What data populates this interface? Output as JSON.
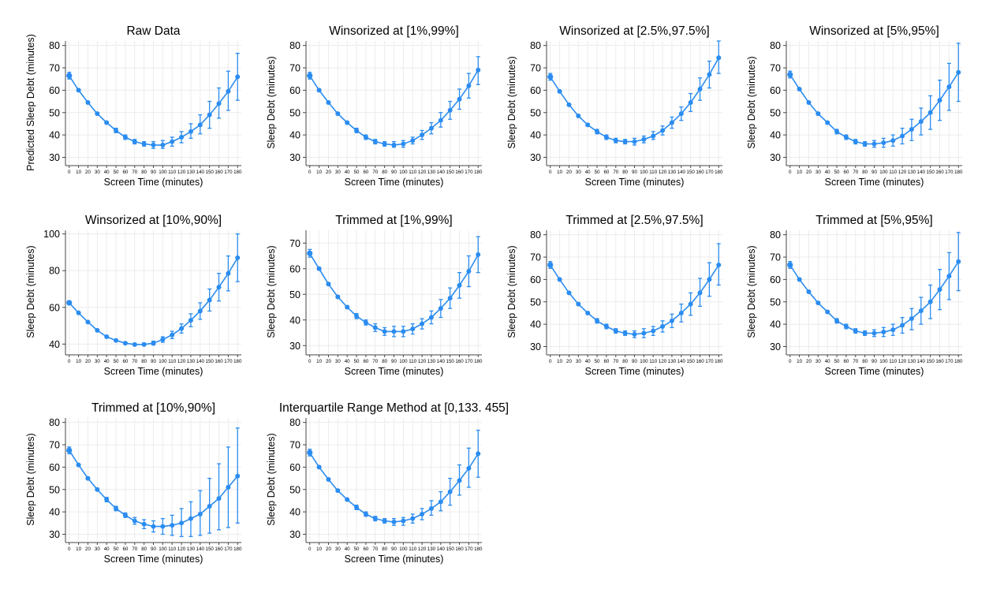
{
  "figure": {
    "series_color": "#2b8cf0",
    "grid_color": "#ececec",
    "axis_color": "#444444"
  },
  "chart_data": [
    {
      "type": "line",
      "title": "Raw Data",
      "xlabel": "Screen Time (minutes)",
      "ylabel": "Predicted Sleep Debt (minutes)",
      "x": [
        0,
        10,
        20,
        30,
        40,
        50,
        60,
        70,
        80,
        90,
        100,
        110,
        120,
        130,
        140,
        150,
        160,
        170,
        180
      ],
      "y": [
        66.5,
        60,
        54.5,
        49.5,
        45.5,
        42,
        39,
        37,
        36,
        35.5,
        35.5,
        37,
        39,
        41.5,
        44.5,
        49,
        54,
        59.5,
        66
      ],
      "ci_low": [
        65,
        59.5,
        54,
        49,
        45,
        41,
        38,
        36,
        35,
        34,
        34,
        35,
        36.5,
        38.5,
        40.5,
        43,
        47.5,
        51,
        55.5
      ],
      "ci_high": [
        68,
        60.5,
        55,
        50,
        46,
        43,
        40,
        38,
        37,
        37,
        37.5,
        39,
        41.5,
        45,
        49,
        55,
        61,
        68.5,
        76.5
      ],
      "ylim": [
        27,
        82
      ],
      "yticks": [
        30,
        40,
        50,
        60,
        70,
        80
      ]
    },
    {
      "type": "line",
      "title": "Winsorized at [1%,99%]",
      "xlabel": "Screen Time (minutes)",
      "ylabel": "Sleep Debt (minutes)",
      "x": [
        0,
        10,
        20,
        30,
        40,
        50,
        60,
        70,
        80,
        90,
        100,
        110,
        120,
        130,
        140,
        150,
        160,
        170,
        180
      ],
      "y": [
        66.5,
        60,
        54.5,
        49.5,
        45.5,
        42,
        39,
        37,
        36,
        35.5,
        36,
        37.5,
        40,
        43,
        46.5,
        51,
        56,
        62,
        69
      ],
      "ci_low": [
        65,
        59.5,
        54,
        49,
        45,
        41,
        38,
        36,
        35,
        34.5,
        34.5,
        36,
        38,
        40.5,
        43.5,
        47,
        51.5,
        56.5,
        62.5
      ],
      "ci_high": [
        68,
        60.5,
        55,
        50,
        46,
        43,
        40,
        38,
        37,
        37,
        37.5,
        39,
        42,
        45.5,
        50,
        55,
        60.5,
        67.5,
        75
      ],
      "ylim": [
        27,
        82
      ],
      "yticks": [
        30,
        40,
        50,
        60,
        70,
        80
      ]
    },
    {
      "type": "line",
      "title": "Winsorized at [2.5%,97.5%]",
      "xlabel": "Screen Time (minutes)",
      "ylabel": "Sleep Debt (minutes)",
      "x": [
        0,
        10,
        20,
        30,
        40,
        50,
        60,
        70,
        80,
        90,
        100,
        110,
        120,
        130,
        140,
        150,
        160,
        170,
        180
      ],
      "y": [
        66,
        59.5,
        53.5,
        48.5,
        44.5,
        41.5,
        39,
        37.5,
        37,
        37,
        38,
        39.5,
        42,
        45.5,
        49.5,
        54.5,
        60.5,
        67,
        74.5
      ],
      "ci_low": [
        64.5,
        59,
        53,
        48,
        44,
        40.5,
        38,
        36.5,
        36,
        35.5,
        36.5,
        38,
        40,
        43,
        46.5,
        50.5,
        55.5,
        61,
        67.5
      ],
      "ci_high": [
        67.5,
        60,
        54,
        49,
        45,
        42.5,
        40,
        38.5,
        38,
        38.5,
        39.5,
        41.5,
        44,
        48,
        52.5,
        58.5,
        65.5,
        73,
        82
      ],
      "ylim": [
        27,
        82
      ],
      "yticks": [
        30,
        40,
        50,
        60,
        70,
        80
      ]
    },
    {
      "type": "line",
      "title": "Winsorized at [5%,95%]",
      "xlabel": "Screen Time (minutes)",
      "ylabel": "Sleep Debt (minutes)",
      "x": [
        0,
        10,
        20,
        30,
        40,
        50,
        60,
        70,
        80,
        90,
        100,
        110,
        120,
        130,
        140,
        150,
        160,
        170,
        180
      ],
      "y": [
        67,
        60.5,
        54.5,
        49.5,
        45.5,
        41.5,
        39,
        37,
        36,
        36,
        36.5,
        37.5,
        39.5,
        42.5,
        46,
        50,
        55.5,
        61.5,
        68
      ],
      "ci_low": [
        65.5,
        60,
        54,
        49,
        45,
        40.5,
        38,
        36,
        35,
        34.5,
        34.5,
        35,
        36,
        37.5,
        40,
        42.5,
        46.5,
        51,
        55
      ],
      "ci_high": [
        68.5,
        61,
        55,
        50,
        46,
        42.5,
        40,
        38,
        37,
        37.5,
        38.5,
        40,
        43,
        47,
        52,
        57.5,
        64.5,
        72,
        81
      ],
      "ylim": [
        27,
        82
      ],
      "yticks": [
        30,
        40,
        50,
        60,
        70,
        80
      ]
    },
    {
      "type": "line",
      "title": "Winsorized at [10%,90%]",
      "xlabel": "Screen Time (minutes)",
      "ylabel": "Sleep Debt (minutes)",
      "x": [
        0,
        10,
        20,
        30,
        40,
        50,
        60,
        70,
        80,
        90,
        100,
        110,
        120,
        130,
        140,
        150,
        160,
        170,
        180
      ],
      "y": [
        62.5,
        57,
        52,
        47.5,
        44,
        42,
        40.5,
        39.8,
        39.8,
        40.5,
        42.5,
        45,
        48.5,
        53,
        58,
        64,
        71,
        78.5,
        87
      ],
      "ci_low": [
        61.5,
        56.5,
        51.5,
        47,
        43.5,
        41.5,
        40,
        39.2,
        39.2,
        39.5,
        41,
        43,
        46,
        49.5,
        53.5,
        58,
        63.5,
        69,
        74
      ],
      "ci_high": [
        63.5,
        57.5,
        52.5,
        48,
        44.5,
        42.5,
        41,
        40.4,
        40.6,
        41.6,
        44,
        47,
        51,
        56.5,
        62.5,
        70,
        78.5,
        88,
        100
      ],
      "ylim": [
        35,
        102
      ],
      "yticks": [
        40,
        60,
        80,
        100
      ]
    },
    {
      "type": "line",
      "title": "Trimmed at [1%,99%]",
      "xlabel": "Screen Time (minutes)",
      "ylabel": "Sleep Debt (minutes)",
      "x": [
        0,
        10,
        20,
        30,
        40,
        50,
        60,
        70,
        80,
        90,
        100,
        110,
        120,
        130,
        140,
        150,
        160,
        170,
        180
      ],
      "y": [
        66,
        60,
        54,
        49,
        45,
        41.5,
        39,
        37,
        35.5,
        35.5,
        35.5,
        36.5,
        38.5,
        41,
        44.5,
        48.5,
        53.5,
        59,
        65.5
      ],
      "ci_low": [
        64.5,
        59.5,
        53.5,
        48.5,
        44.5,
        40.5,
        38,
        35.5,
        34,
        33.5,
        33.5,
        34.5,
        36.5,
        38.5,
        41,
        44.5,
        48.5,
        53,
        58.5
      ],
      "ci_high": [
        67.5,
        60.5,
        54.5,
        49.5,
        45.5,
        42.5,
        40,
        38.5,
        37,
        37.5,
        37.5,
        38.5,
        40.5,
        43.5,
        48,
        52.5,
        58.5,
        65,
        72.5
      ],
      "ylim": [
        27,
        75
      ],
      "yticks": [
        30,
        40,
        50,
        60,
        70
      ]
    },
    {
      "type": "line",
      "title": "Trimmed at [2.5%,97.5%]",
      "xlabel": "Screen Time (minutes)",
      "ylabel": "Sleep Debt (minutes)",
      "x": [
        0,
        10,
        20,
        30,
        40,
        50,
        60,
        70,
        80,
        90,
        100,
        110,
        120,
        130,
        140,
        150,
        160,
        170,
        180
      ],
      "y": [
        66.5,
        60,
        54,
        49,
        45,
        41.5,
        39,
        37,
        36,
        35.5,
        36,
        37,
        39,
        41.5,
        45,
        49,
        54,
        60,
        66.5
      ],
      "ci_low": [
        65,
        59.5,
        53.5,
        48.5,
        44.5,
        40.5,
        38,
        36,
        35,
        34,
        34,
        35,
        36.5,
        38.5,
        41,
        44,
        48,
        52.5,
        57.5
      ],
      "ci_high": [
        68,
        60.5,
        54.5,
        49.5,
        45.5,
        42.5,
        40,
        38,
        37,
        37,
        38,
        39,
        41.5,
        44.5,
        49,
        54,
        60.5,
        67.5,
        76
      ],
      "ylim": [
        27,
        82
      ],
      "yticks": [
        30,
        40,
        50,
        60,
        70,
        80
      ]
    },
    {
      "type": "line",
      "title": "Trimmed at [5%,95%]",
      "xlabel": "Screen Time (minutes)",
      "ylabel": "Sleep Debt (minutes)",
      "x": [
        0,
        10,
        20,
        30,
        40,
        50,
        60,
        70,
        80,
        90,
        100,
        110,
        120,
        130,
        140,
        150,
        160,
        170,
        180
      ],
      "y": [
        66.5,
        60,
        54.5,
        49.5,
        45.5,
        41.5,
        39,
        37,
        36,
        36,
        36.5,
        37.5,
        39.5,
        42.5,
        46,
        50,
        55.5,
        61.5,
        68
      ],
      "ci_low": [
        65,
        59.5,
        54,
        49,
        45,
        40.5,
        38,
        36,
        35,
        34.5,
        34.5,
        35,
        36,
        37.5,
        40,
        42.5,
        46.5,
        51,
        55
      ],
      "ci_high": [
        68,
        60.5,
        55,
        50,
        46,
        42.5,
        40,
        38,
        37,
        37.5,
        38.5,
        40,
        43,
        47,
        52,
        57.5,
        64.5,
        72,
        81
      ],
      "ylim": [
        27,
        82
      ],
      "yticks": [
        30,
        40,
        50,
        60,
        70,
        80
      ]
    },
    {
      "type": "line",
      "title": "Trimmed at [10%,90%]",
      "xlabel": "Screen Time (minutes)",
      "ylabel": "Sleep Debt (minutes)",
      "x": [
        0,
        10,
        20,
        30,
        40,
        50,
        60,
        70,
        80,
        90,
        100,
        110,
        120,
        130,
        140,
        150,
        160,
        170,
        180
      ],
      "y": [
        67.5,
        61,
        55,
        50,
        45.5,
        41.5,
        38.5,
        36,
        34.5,
        33.5,
        33.5,
        34,
        35,
        37,
        39,
        42.5,
        46,
        51,
        56
      ],
      "ci_low": [
        66,
        60.5,
        54.5,
        49.5,
        44.5,
        40.5,
        37.5,
        34.5,
        32.5,
        31,
        30,
        29.5,
        29,
        29,
        29.5,
        30.5,
        32,
        33,
        35
      ],
      "ci_high": [
        69,
        61.5,
        55.5,
        50.5,
        46.5,
        42.5,
        39.5,
        37.5,
        36.5,
        36,
        37,
        38.5,
        41.5,
        44.5,
        49.5,
        55,
        61.5,
        69,
        77.5
      ],
      "ylim": [
        27,
        82
      ],
      "yticks": [
        30,
        40,
        50,
        60,
        70,
        80
      ]
    },
    {
      "type": "line",
      "title": "Interquartile Range Method at [0,133. 455]",
      "xlabel": "Screen Time (minutes)",
      "ylabel": "Sleep Debt (minutes)",
      "x": [
        0,
        10,
        20,
        30,
        40,
        50,
        60,
        70,
        80,
        90,
        100,
        110,
        120,
        130,
        140,
        150,
        160,
        170,
        180
      ],
      "y": [
        66.5,
        60,
        54.5,
        49.5,
        45.5,
        42,
        39,
        37,
        36,
        35.5,
        36,
        37,
        39,
        41.5,
        44.5,
        49,
        54,
        59.5,
        66
      ],
      "ci_low": [
        65,
        59.5,
        54,
        49,
        45,
        41,
        38,
        36,
        35,
        34,
        34,
        35,
        36.5,
        38.5,
        40.5,
        43,
        47.5,
        51,
        55.5
      ],
      "ci_high": [
        68,
        60.5,
        55,
        50,
        46,
        43,
        40,
        38,
        37,
        37,
        37.5,
        39,
        41.5,
        45,
        49,
        55,
        61,
        68.5,
        76.5
      ],
      "ylim": [
        27,
        82
      ],
      "yticks": [
        30,
        40,
        50,
        60,
        70,
        80
      ]
    }
  ]
}
